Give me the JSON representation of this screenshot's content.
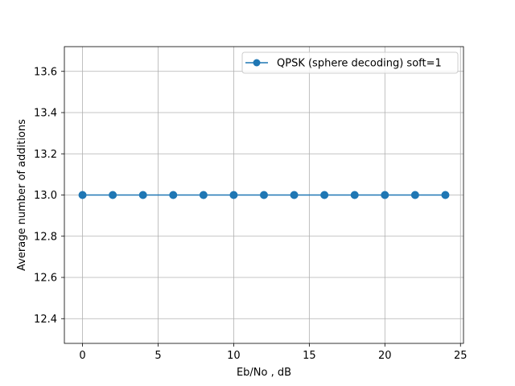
{
  "chart_data": {
    "type": "line",
    "title": "",
    "xlabel": "Eb/No , dB",
    "ylabel": "Average number of additions",
    "xlim": [
      -1.2,
      25.2
    ],
    "ylim": [
      12.28,
      13.72
    ],
    "xticks": [
      0,
      5,
      10,
      15,
      20,
      25
    ],
    "yticks": [
      12.4,
      12.6,
      12.8,
      13.0,
      13.2,
      13.4,
      13.6
    ],
    "xtick_labels": [
      "0",
      "5",
      "10",
      "15",
      "20",
      "25"
    ],
    "ytick_labels": [
      "12.4",
      "12.6",
      "12.8",
      "13.0",
      "13.2",
      "13.4",
      "13.6"
    ],
    "grid": true,
    "legend_position": "top-right",
    "series": [
      {
        "name": "QPSK (sphere decoding) soft=1",
        "color": "#1f77b4",
        "marker": "circle",
        "x": [
          0,
          2,
          4,
          6,
          8,
          10,
          12,
          14,
          16,
          18,
          20,
          22,
          24
        ],
        "y": [
          13,
          13,
          13,
          13,
          13,
          13,
          13,
          13,
          13,
          13,
          13,
          13,
          13
        ]
      }
    ]
  }
}
